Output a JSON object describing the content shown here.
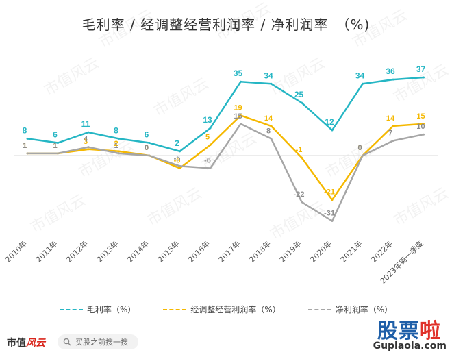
{
  "title": "毛利率 / 经调整经营利润率 / 净利润率　（%)",
  "footer": {
    "logo_main": "市值",
    "logo_accent": "风云",
    "search_placeholder": "买股之前搜一搜"
  },
  "watermark": {
    "brand_main": "股票",
    "brand_accent": "啦",
    "site": "Gupiaola.com"
  },
  "colors": {
    "gross": "#25b6c4",
    "adj": "#f5b800",
    "net": "#a6a6a6"
  },
  "chart_data": {
    "type": "line",
    "categories": [
      "2010年",
      "2011年",
      "2012年",
      "2013年",
      "2014年",
      "2015年",
      "2016年",
      "2017年",
      "2018年",
      "2019年",
      "2020年",
      "2021年",
      "2022年",
      "2023年第一季度"
    ],
    "series": [
      {
        "name": "毛利率（%）",
        "values": [
          8,
          6,
          11,
          8,
          6,
          2,
          13,
          35,
          34,
          25,
          12,
          34,
          36,
          37
        ]
      },
      {
        "name": "经调整经营利润率（%）",
        "values": [
          1,
          1,
          3,
          2,
          0,
          -6,
          5,
          19,
          14,
          -1,
          -21,
          0,
          14,
          15
        ]
      },
      {
        "name": "净利润率（%）",
        "values": [
          1,
          1,
          4,
          1,
          0,
          -5,
          -6,
          15,
          8,
          -22,
          -31,
          0,
          7,
          10
        ]
      }
    ],
    "labels": [
      [
        "8",
        "6",
        "11",
        "8",
        "6",
        "2",
        "13",
        "35",
        "34",
        "25",
        "12",
        "34",
        "36",
        "37"
      ],
      [
        "1",
        "1",
        "3",
        "2",
        "0",
        "-6",
        "5",
        "19",
        "14",
        "-1",
        "-21",
        "0",
        "14",
        "15"
      ],
      [
        "1",
        "1",
        "4",
        "1",
        "0",
        "-5",
        "-6",
        "15",
        "8",
        "-22",
        "-31",
        "0",
        "7",
        "10"
      ]
    ],
    "line_style": "dashed",
    "legend_position": "bottom",
    "grid": false
  }
}
